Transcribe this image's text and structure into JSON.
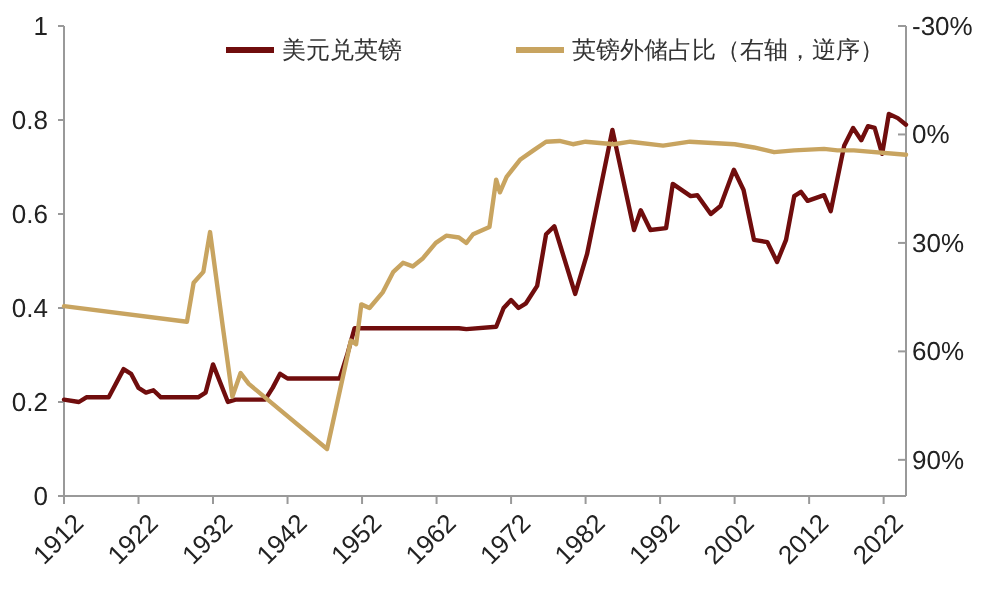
{
  "chart_data": {
    "type": "line",
    "xlim": [
      1912,
      2025
    ],
    "xticks": [
      1912,
      1922,
      1932,
      1942,
      1952,
      1962,
      1972,
      1982,
      1992,
      2002,
      2012,
      2022
    ],
    "ylim": [
      0,
      1
    ],
    "yticks": [
      0,
      0.2,
      0.4,
      0.6,
      0.8,
      1
    ],
    "y2lim": [
      100,
      -30
    ],
    "y2ticks": [
      {
        "value": -30,
        "label": "-30%"
      },
      {
        "value": 0,
        "label": "0%"
      },
      {
        "value": 30,
        "label": "30%"
      },
      {
        "value": 60,
        "label": "60%"
      },
      {
        "value": 90,
        "label": "90%"
      }
    ],
    "legend": "top right",
    "grid": false,
    "marker": "none",
    "line_style": "solid",
    "series": [
      {
        "name": "美元兑英镑",
        "color": "#700d0d",
        "x": [
          1912,
          1914,
          1915,
          1918,
          1920,
          1921,
          1922,
          1923,
          1924,
          1925,
          1930,
          1931,
          1932,
          1934,
          1935,
          1939,
          1940,
          1941,
          1942,
          1948,
          1949,
          1950,
          1951,
          1965,
          1966,
          1970,
          1971,
          1972,
          1973,
          1974,
          1975.5,
          1976.7,
          1977.8,
          1980.6,
          1982.2,
          1985.6,
          1988.5,
          1989.4,
          1990.7,
          1992.8,
          1993.7,
          1996.1,
          1997,
          1998.8,
          2000.1,
          2001.9,
          2003.2,
          2004.6,
          2006.4,
          2007.7,
          2008.9,
          2010,
          2010.9,
          2011.8,
          2014,
          2014.9,
          2016.7,
          2017.9,
          2019,
          2019.9,
          2020.8,
          2021.8,
          2022.7,
          2023.9,
          2025
        ],
        "values": [
          0.205,
          0.2,
          0.21,
          0.21,
          0.27,
          0.26,
          0.23,
          0.22,
          0.225,
          0.21,
          0.21,
          0.22,
          0.28,
          0.2,
          0.205,
          0.205,
          0.23,
          0.26,
          0.25,
          0.25,
          0.25,
          0.3,
          0.357,
          0.357,
          0.355,
          0.36,
          0.4,
          0.417,
          0.4,
          0.41,
          0.447,
          0.557,
          0.574,
          0.43,
          0.515,
          0.779,
          0.566,
          0.608,
          0.566,
          0.57,
          0.664,
          0.638,
          0.64,
          0.6,
          0.617,
          0.694,
          0.651,
          0.545,
          0.54,
          0.498,
          0.545,
          0.638,
          0.647,
          0.628,
          0.64,
          0.606,
          0.745,
          0.783,
          0.757,
          0.787,
          0.783,
          0.728,
          0.813,
          0.804,
          0.79
        ]
      },
      {
        "name": "英镑外储占比（右轴，逆序）",
        "color": "#c8a460",
        "axis": "y2",
        "x": [
          1912,
          1928.5,
          1929.4,
          1930.7,
          1931.6,
          1933.4,
          1934.6,
          1935.7,
          1936.8,
          1947.3,
          1950.5,
          1951.2,
          1951.9,
          1953,
          1954.8,
          1956.2,
          1957.5,
          1958.8,
          1960.1,
          1961.9,
          1963.3,
          1965,
          1966,
          1966.9,
          1969.1,
          1970,
          1970.5,
          1971.4,
          1973.2,
          1975,
          1976.7,
          1978.5,
          1980.3,
          1982,
          1985.8,
          1988,
          1992.4,
          1996,
          2002,
          2004.6,
          2007.3,
          2010,
          2014,
          2015.8,
          2018,
          2025
        ],
        "values": [
          47.5,
          51.8,
          41,
          38,
          27,
          54.5,
          72.5,
          66,
          69,
          87,
          57,
          58,
          47,
          48,
          43.6,
          38,
          35.5,
          36.5,
          34.4,
          30,
          28,
          28.5,
          30,
          27.6,
          25.6,
          12.5,
          16,
          11.7,
          7,
          4.4,
          2,
          1.8,
          2.7,
          2,
          2.7,
          2,
          3.1,
          2,
          2.7,
          3.6,
          4.9,
          4.4,
          4,
          4.4,
          4.4,
          5.6
        ]
      }
    ]
  }
}
